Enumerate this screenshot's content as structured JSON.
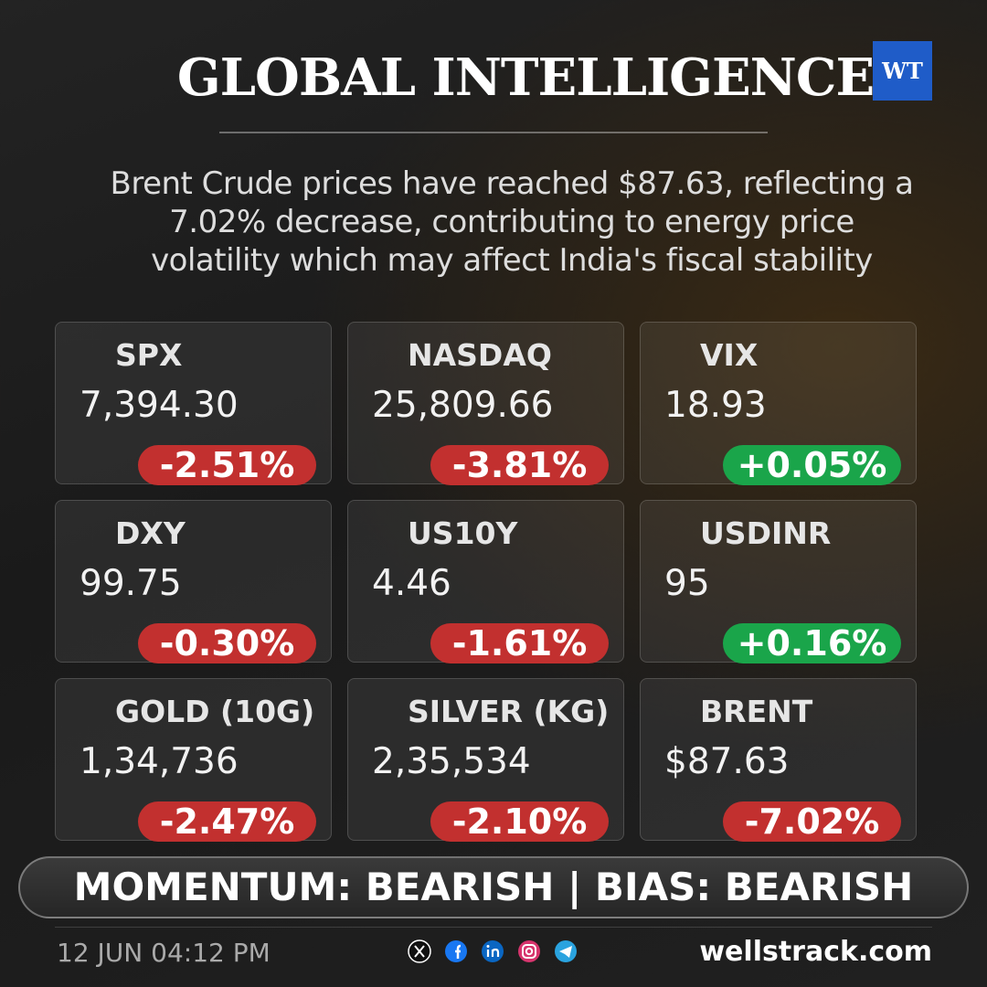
{
  "header": {
    "title": "GLOBAL INTELLIGENCE",
    "logo": "WT"
  },
  "summary": [
    "Brent Crude prices have reached $87.63, reflecting a",
    "7.02% decrease, contributing to energy price",
    "volatility which may affect India's fiscal stability"
  ],
  "tiles": [
    {
      "name": "SPX",
      "value": "7,394.30",
      "change": "-2.51%",
      "direction": "down"
    },
    {
      "name": "NASDAQ",
      "value": "25,809.66",
      "change": "-3.81%",
      "direction": "down"
    },
    {
      "name": "VIX",
      "value": "18.93",
      "change": "+0.05%",
      "direction": "up"
    },
    {
      "name": "DXY",
      "value": "99.75",
      "change": "-0.30%",
      "direction": "down"
    },
    {
      "name": "US10Y",
      "value": "4.46",
      "change": "-1.61%",
      "direction": "down"
    },
    {
      "name": "USDINR",
      "value": "95",
      "change": "+0.16%",
      "direction": "up"
    },
    {
      "name": "GOLD (10G)",
      "value": "1,34,736",
      "change": "-2.47%",
      "direction": "down"
    },
    {
      "name": "SILVER (KG)",
      "value": "2,35,534",
      "change": "-2.10%",
      "direction": "down"
    },
    {
      "name": "BRENT",
      "value": "$87.63",
      "change": "-7.02%",
      "direction": "down"
    }
  ],
  "momentum": "MOMENTUM: BEARISH | BIAS: BEARISH",
  "footer": {
    "timestamp": "12 JUN 04:12 PM",
    "website": "wellstrack.com"
  }
}
